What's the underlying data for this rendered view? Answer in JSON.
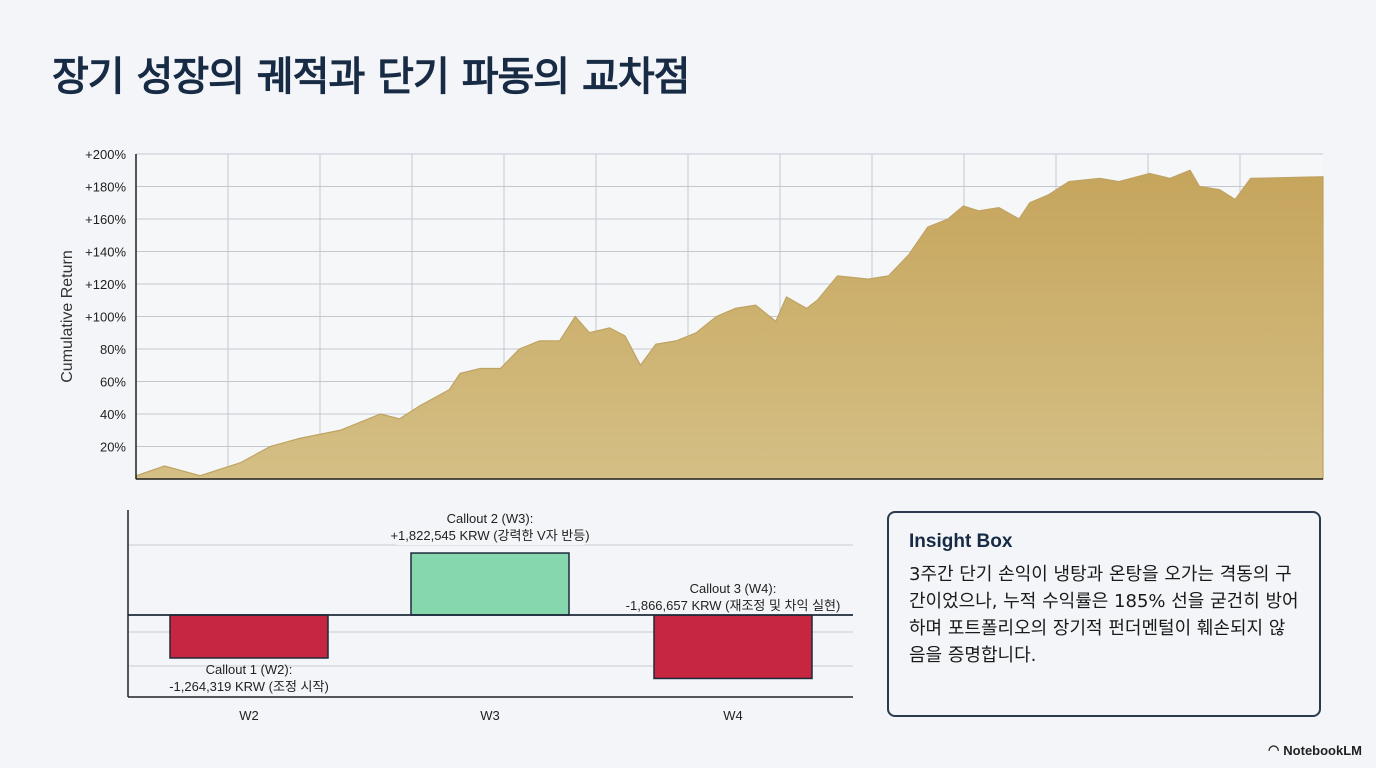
{
  "title": "장기 성장의 궤적과 단기 파동의 교차점",
  "chart_data": [
    {
      "type": "area",
      "ylabel": "Cumulative Return",
      "xlabel": "",
      "ylim": [
        0,
        200
      ],
      "xlim": [
        0,
        100
      ],
      "grid": true,
      "yticks": [
        "20%",
        "40%",
        "60%",
        "80%",
        "+100%",
        "+120%",
        "+140%",
        "+160%",
        "+180%",
        "+200%"
      ],
      "ytick_values": [
        20,
        40,
        60,
        80,
        100,
        120,
        140,
        160,
        180,
        200
      ],
      "color": "#d4bf85",
      "x": [
        0,
        2.4,
        5.4,
        8.8,
        11.3,
        13.8,
        17.2,
        20.6,
        22.2,
        23.9,
        26.4,
        27.3,
        29,
        30.7,
        32.3,
        34,
        35.7,
        37,
        38.2,
        39.9,
        41.2,
        42.5,
        43.8,
        45.5,
        47.2,
        48.9,
        50.5,
        52.2,
        53.9,
        54.8,
        56.5,
        57.4,
        59.1,
        61.7,
        63.4,
        65.1,
        66.7,
        68.4,
        69.7,
        71,
        72.7,
        74.4,
        75.3,
        76.9,
        78.6,
        81.2,
        82.8,
        85.4,
        87.1,
        88.8,
        89.6,
        91.3,
        92.6,
        93.9,
        100
      ],
      "y": [
        2,
        8,
        2,
        10,
        20,
        25,
        30,
        40,
        37,
        45,
        55,
        65,
        68,
        68,
        80,
        85,
        85,
        100,
        90,
        93,
        88,
        70,
        83,
        85,
        90,
        100,
        105,
        107,
        97,
        112,
        105,
        110,
        125,
        123,
        125,
        138,
        155,
        160,
        168,
        165,
        167,
        160,
        170,
        175,
        183,
        185,
        183,
        188,
        185,
        190,
        180,
        178,
        172,
        185,
        186
      ]
    },
    {
      "type": "bar",
      "categories": [
        "W2",
        "W3",
        "W4"
      ],
      "values": [
        -1264319,
        1822545,
        -1866657
      ],
      "colors": [
        "#c62640",
        "#86d7ad",
        "#c62640"
      ],
      "annotations": [
        {
          "title": "Callout 1 (W2):",
          "text": "-1,264,319 KRW (조정 시작)"
        },
        {
          "title": "Callout 2 (W3):",
          "text": "+1,822,545 KRW (강력한 V자 반등)"
        },
        {
          "title": "Callout 3 (W4):",
          "text": "-1,866,657 KRW (재조정 및 차익 실현)"
        }
      ]
    }
  ],
  "insight": {
    "heading": "Insight Box",
    "body": "3주간 단기 손익이 냉탕과 온탕을 오가는 격동의 구간이었으나, 누적 수익률은 185% 선을 굳건히 방어하며 포트폴리오의 장기적 펀더멘털이 훼손되지 않음을 증명합니다."
  },
  "brand": "NotebookLM"
}
